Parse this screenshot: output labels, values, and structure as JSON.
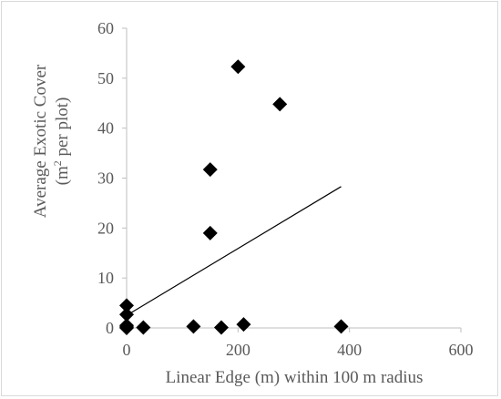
{
  "chart_data": {
    "type": "scatter",
    "xlabel": "Linear Edge (m) within 100 m radius",
    "ylabel": "Average Exotic Cover",
    "ylabel_unit_prefix": "(m",
    "ylabel_unit_sup": "2",
    "ylabel_unit_suffix": " per plot)",
    "xlim": [
      0,
      600
    ],
    "ylim": [
      0,
      60
    ],
    "x_ticks": [
      0,
      200,
      400,
      600
    ],
    "y_ticks": [
      0,
      10,
      20,
      30,
      40,
      50,
      60
    ],
    "grid": false,
    "legend": "none",
    "marker": "diamond",
    "marker_color": "#000000",
    "points": [
      {
        "x": 0,
        "y": 4.5
      },
      {
        "x": 0,
        "y": 2.7
      },
      {
        "x": 0,
        "y": 0.5
      },
      {
        "x": 0,
        "y": 0.2
      },
      {
        "x": 0,
        "y": 0.0
      },
      {
        "x": 30,
        "y": 0.1
      },
      {
        "x": 120,
        "y": 0.3
      },
      {
        "x": 150,
        "y": 31.7
      },
      {
        "x": 150,
        "y": 19.0
      },
      {
        "x": 170,
        "y": 0.1
      },
      {
        "x": 200,
        "y": 52.3
      },
      {
        "x": 210,
        "y": 0.7
      },
      {
        "x": 275,
        "y": 44.8
      },
      {
        "x": 385,
        "y": 0.3
      }
    ],
    "trendline": {
      "x_start": 0,
      "y_start": 2.5,
      "x_end": 385,
      "y_end": 28.3
    }
  }
}
